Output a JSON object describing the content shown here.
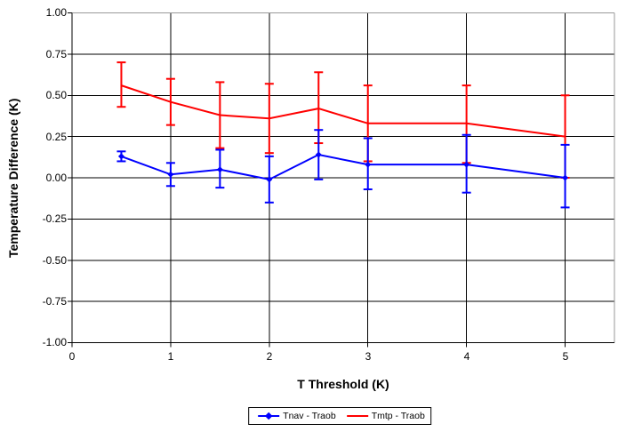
{
  "chart_data": {
    "type": "line",
    "title": "",
    "xlabel": "T Threshold (K)",
    "ylabel": "Temperature Difference (K)",
    "xlim": [
      0,
      5.5
    ],
    "ylim": [
      -1.0,
      1.0
    ],
    "grid": true,
    "legend_position": "bottom-center",
    "x_tick_values": [
      0,
      1,
      2,
      3,
      4,
      5
    ],
    "x_tick_labels": [
      "0",
      "1",
      "2",
      "3",
      "4",
      "5"
    ],
    "y_tick_values": [
      1.0,
      0.75,
      0.5,
      0.25,
      0.0,
      -0.25,
      -0.5,
      -0.75,
      -1.0
    ],
    "y_tick_labels": [
      "1.00",
      "0.75",
      "0.50",
      "0.25",
      "0.00",
      "-0.25",
      "-0.50",
      "-0.75",
      "-1.00"
    ],
    "colors": {
      "grid": "#000000",
      "axis": "#000000",
      "plot_border": "#999999",
      "background": "#ffffff",
      "series_tnav": "#0000ff",
      "series_tmtp": "#ff0000"
    },
    "series": [
      {
        "name": "Tnav - Traob",
        "color": "#0000ff",
        "marker": "diamond",
        "x": [
          0.5,
          1,
          1.5,
          2,
          2.5,
          3,
          4,
          5
        ],
        "y": [
          0.13,
          0.02,
          0.05,
          -0.01,
          0.14,
          0.08,
          0.08,
          0.0
        ],
        "err_upper": [
          0.16,
          0.09,
          0.17,
          0.13,
          0.29,
          0.24,
          0.26,
          0.2
        ],
        "err_lower": [
          0.1,
          -0.05,
          -0.06,
          -0.15,
          -0.01,
          -0.07,
          -0.09,
          -0.18
        ]
      },
      {
        "name": "Tmtp - Traob",
        "color": "#ff0000",
        "marker": "none",
        "x": [
          0.5,
          1,
          1.5,
          2,
          2.5,
          3,
          4,
          5
        ],
        "y": [
          0.56,
          0.46,
          0.38,
          0.36,
          0.42,
          0.33,
          0.33,
          0.25
        ],
        "err_upper": [
          0.7,
          0.6,
          0.58,
          0.57,
          0.64,
          0.56,
          0.56,
          0.5
        ],
        "err_lower": [
          0.43,
          0.32,
          0.18,
          0.15,
          0.21,
          0.1,
          0.09,
          0.0
        ]
      }
    ]
  }
}
